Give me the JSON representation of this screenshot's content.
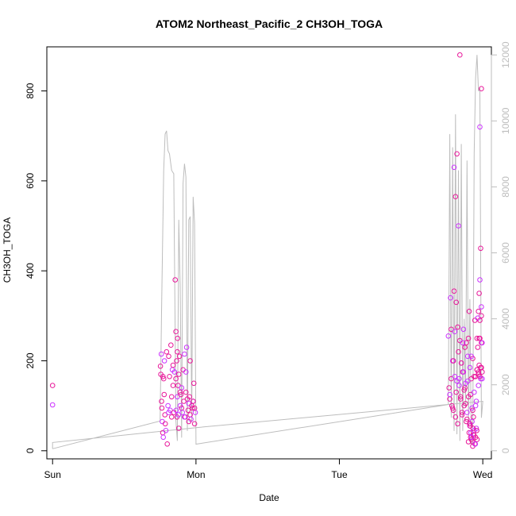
{
  "chart_data": {
    "type": "scatter",
    "title": "ATOM2 Northeast_Pacific_2 CH3OH_TOGA",
    "xlabel": "Date",
    "ylabel": "CH3OH_TOGA",
    "x_ticks": [
      {
        "label": "Sun",
        "value": 0
      },
      {
        "label": "Mon",
        "value": 1
      },
      {
        "label": "Tue",
        "value": 2
      },
      {
        "label": "Wed",
        "value": 3
      }
    ],
    "xlim": [
      -0.04,
      3.06
    ],
    "ylim": [
      -18,
      898
    ],
    "y_ticks": [
      0,
      200,
      400,
      600,
      800
    ],
    "y2lim": [
      -245,
      12245
    ],
    "y2_ticks": [
      0,
      2000,
      4000,
      6000,
      8000,
      10000,
      12000
    ],
    "colors": {
      "points": "#e8189a",
      "points_alt": "#cc33ff",
      "altitude": "#bdbdbd",
      "axis": "#000000",
      "right_axis": "#bdbdbd"
    },
    "series": [
      {
        "axis": "left",
        "style": "points",
        "x": [
          0.0,
          0.0,
          0.752,
          0.755,
          0.758,
          0.76,
          0.762,
          0.765,
          0.768,
          0.77,
          0.772,
          0.775,
          0.778,
          0.78,
          0.783,
          0.786,
          0.79,
          0.795,
          0.8,
          0.805,
          0.81,
          0.815,
          0.82,
          0.825,
          0.83,
          0.835,
          0.84,
          0.845,
          0.85,
          0.855,
          0.86,
          0.862,
          0.865,
          0.868,
          0.87,
          0.872,
          0.875,
          0.878,
          0.88,
          0.885,
          0.89,
          0.895,
          0.9,
          0.905,
          0.91,
          0.915,
          0.92,
          0.925,
          0.93,
          0.935,
          0.94,
          0.945,
          0.95,
          0.955,
          0.96,
          0.965,
          0.97,
          0.975,
          0.98,
          0.985,
          0.99,
          0.995,
          0.86,
          0.88,
          0.9,
          0.84,
          0.87,
          0.92,
          0.95,
          0.98,
          0.81,
          0.83,
          0.89,
          0.93,
          0.96,
          0.99,
          2.76,
          2.765,
          2.77,
          2.775,
          2.78,
          2.785,
          2.79,
          2.795,
          2.8,
          2.805,
          2.81,
          2.815,
          2.82,
          2.825,
          2.83,
          2.835,
          2.84,
          2.845,
          2.85,
          2.855,
          2.86,
          2.865,
          2.87,
          2.875,
          2.88,
          2.885,
          2.89,
          2.895,
          2.9,
          2.905,
          2.91,
          2.915,
          2.92,
          2.925,
          2.93,
          2.935,
          2.94,
          2.945,
          2.95,
          2.955,
          2.96,
          2.965,
          2.97,
          2.975,
          2.98,
          2.985,
          2.99,
          2.995,
          2.77,
          2.78,
          2.79,
          2.8,
          2.81,
          2.82,
          2.83,
          2.84,
          2.85,
          2.86,
          2.87,
          2.88,
          2.89,
          2.9,
          2.91,
          2.92,
          2.93,
          2.94,
          2.95,
          2.96,
          2.97,
          2.98,
          2.99,
          2.795,
          2.805,
          2.815,
          2.825,
          2.835,
          2.845,
          2.855,
          2.865,
          2.875,
          2.885,
          2.895,
          2.9,
          2.905,
          2.91,
          2.915,
          2.92,
          2.925,
          2.93,
          2.935,
          2.94,
          2.945,
          2.95,
          2.955,
          2.96,
          2.908,
          2.918,
          2.928,
          2.938,
          2.948,
          2.958,
          2.912,
          2.922,
          2.932,
          2.96,
          2.965,
          2.97,
          2.975,
          2.98,
          2.985,
          2.99,
          2.995,
          2.97,
          2.98,
          2.99,
          2.985,
          2.975,
          2.995,
          2.98,
          2.99
        ],
        "y": [
          145,
          102,
          188,
          170,
          215,
          110,
          95,
          65,
          40,
          165,
          30,
          160,
          125,
          200,
          80,
          60,
          45,
          220,
          15,
          100,
          210,
          165,
          90,
          235,
          75,
          180,
          145,
          85,
          175,
          380,
          265,
          90,
          200,
          75,
          120,
          250,
          145,
          80,
          170,
          210,
          100,
          125,
          95,
          85,
          180,
          110,
          215,
          75,
          130,
          230,
          115,
          90,
          105,
          120,
          80,
          70,
          100,
          95,
          110,
          150,
          60,
          85,
          160,
          50,
          140,
          190,
          220,
          75,
          65,
          110,
          85,
          120,
          130,
          175,
          200,
          95,
          255,
          140,
          115,
          340,
          270,
          100,
          200,
          90,
          355,
          265,
          75,
          330,
          155,
          60,
          220,
          160,
          245,
          120,
          195,
          85,
          175,
          270,
          100,
          140,
          150,
          240,
          70,
          210,
          250,
          310,
          185,
          125,
          160,
          95,
          205,
          75,
          130,
          290,
          165,
          110,
          180,
          230,
          145,
          190,
          250,
          160,
          300,
          175,
          125,
          160,
          95,
          630,
          565,
          660,
          500,
          880,
          195,
          240,
          135,
          105,
          85,
          120,
          60,
          210,
          90,
          165,
          100,
          250,
          170,
          720,
          805,
          200,
          165,
          130,
          275,
          145,
          115,
          80,
          175,
          230,
          65,
          155,
          20,
          40,
          55,
          30,
          25,
          65,
          10,
          35,
          45,
          15,
          30,
          50,
          25,
          60,
          40,
          20,
          35,
          15,
          45,
          55,
          30,
          50,
          180,
          295,
          310,
          350,
          380,
          450,
          240,
          160,
          175,
          290,
          320,
          185,
          250,
          240,
          165,
          185
        ]
      },
      {
        "axis": "right",
        "style": "line",
        "x": [
          0.0,
          0.75,
          0.76,
          0.775,
          0.785,
          0.795,
          0.805,
          0.815,
          0.83,
          0.845,
          0.86,
          0.87,
          0.88,
          0.89,
          0.9,
          0.91,
          0.92,
          0.93,
          0.94,
          0.95,
          0.96,
          0.97,
          0.98,
          0.99,
          1.0,
          2.76,
          2.77,
          2.78,
          2.79,
          2.8,
          2.81,
          2.82,
          2.83,
          2.84,
          2.85,
          2.86,
          2.87,
          2.88,
          2.89,
          2.9,
          2.91,
          2.92,
          2.93,
          2.94,
          2.95,
          2.96,
          2.97,
          2.98,
          2.99,
          3.0,
          3.0,
          2.0,
          1.0,
          0.0,
          0.0
        ],
        "y": [
          60,
          900,
          4200,
          8500,
          9600,
          9700,
          9100,
          9000,
          8500,
          8400,
          900,
          300,
          7000,
          5000,
          400,
          8100,
          8700,
          8300,
          600,
          7000,
          7100,
          900,
          7700,
          6900,
          200,
          1400,
          9600,
          1000,
          9200,
          600,
          10200,
          500,
          8500,
          300,
          9300,
          600,
          4000,
          1300,
          8800,
          800,
          4600,
          200,
          300,
          9000,
          11300,
          12000,
          10900,
          11000,
          1000,
          1500,
          1500,
          1100,
          700,
          250,
          60
        ]
      }
    ]
  }
}
